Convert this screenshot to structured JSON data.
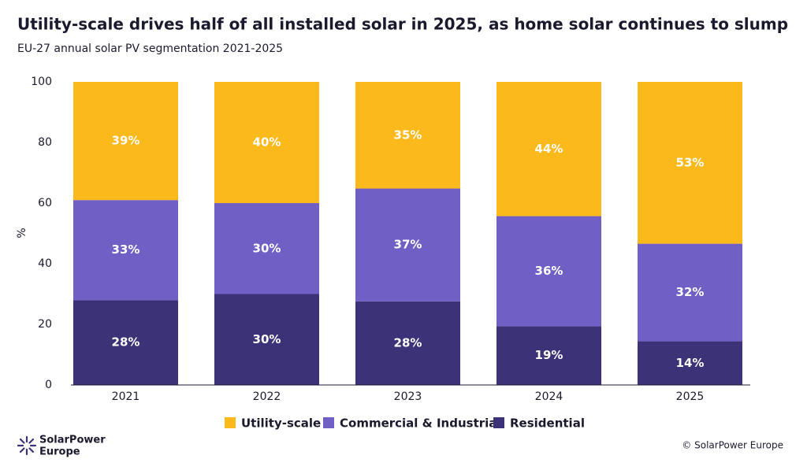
{
  "chart_data": {
    "type": "stacked_bar",
    "title": "Utility-scale drives half of all installed solar in 2025, as home solar continues to slump",
    "subtitle": "EU-27 annual solar PV segmentation 2021-2025",
    "y_label": "%",
    "categories": [
      "2021",
      "2022",
      "2023",
      "2024",
      "2025"
    ],
    "series": [
      {
        "name": "Utility-scale",
        "color": "#fbb91b",
        "values": [
          39,
          40,
          35.2,
          44.3,
          53.4
        ],
        "value_labels": [
          "39%",
          "40%",
          "35%",
          "44%",
          "53%"
        ]
      },
      {
        "name": "Commercial & Industrial",
        "color": "#7060c6",
        "values": [
          33,
          30,
          37.2,
          36.3,
          32.2
        ],
        "value_labels": [
          "33%",
          "30%",
          "37%",
          "36%",
          "32%"
        ]
      },
      {
        "name": "Residential",
        "color": "#3b3278",
        "values": [
          28,
          30,
          27.6,
          19.4,
          14.4
        ],
        "value_labels": [
          "28%",
          "30%",
          "28%",
          "19%",
          "14%"
        ]
      }
    ],
    "ylim": [
      0,
      100
    ],
    "yticks": [
      0,
      20,
      40,
      60,
      80,
      100
    ],
    "brand": [
      "SolarPower",
      "Europe"
    ],
    "credit": "© SolarPower Europe"
  }
}
